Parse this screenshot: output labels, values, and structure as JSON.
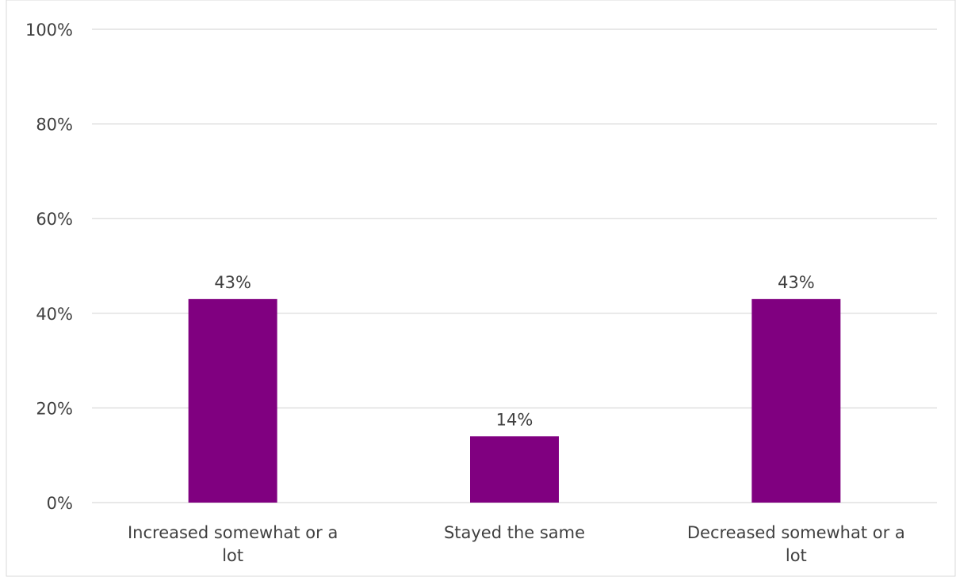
{
  "chart_data": {
    "type": "bar",
    "categories": [
      [
        "Increased somewhat or a",
        "lot"
      ],
      [
        "Stayed the same"
      ],
      [
        "Decreased somewhat or a",
        "lot"
      ]
    ],
    "values": [
      43,
      14,
      43
    ],
    "data_labels": [
      "43%",
      "14%",
      "43%"
    ],
    "y_ticks": [
      0,
      20,
      40,
      60,
      80,
      100
    ],
    "y_tick_labels": [
      "0%",
      "20%",
      "40%",
      "60%",
      "80%",
      "100%"
    ],
    "ylim": [
      0,
      100
    ],
    "grid": true,
    "legend": "none",
    "title": "",
    "xlabel": "",
    "ylabel": "",
    "colors": {
      "bar": "#800080",
      "grid": "#d9d9d9",
      "text": "#404040",
      "frame": "#d9d9d9"
    }
  }
}
